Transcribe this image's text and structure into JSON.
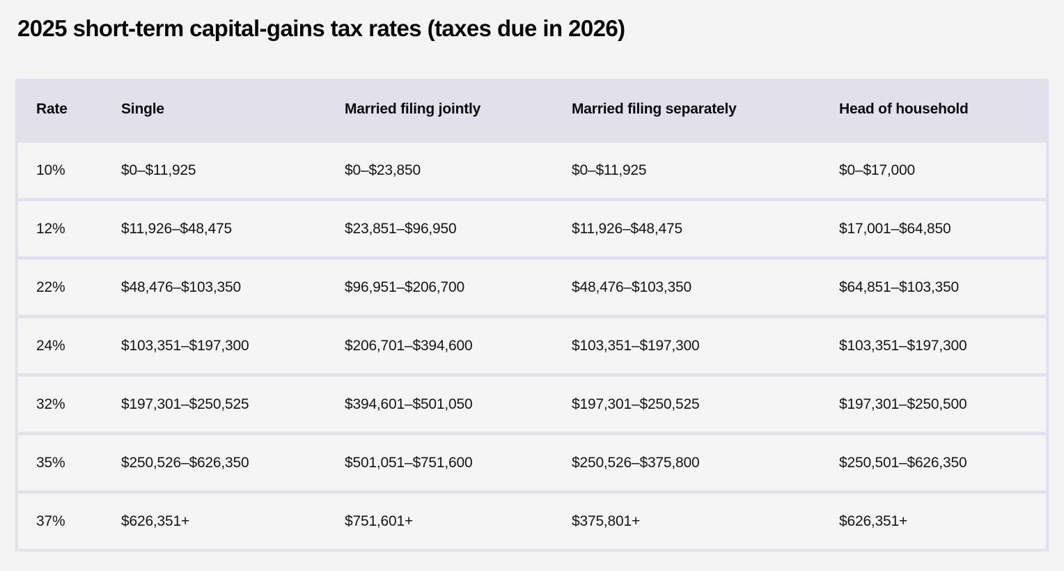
{
  "page": {
    "background_color": "#f4f4f4"
  },
  "colors": {
    "header_bg": "#e1e0eb",
    "row_bg": "#f6f5f6",
    "grid_lines": "#e2e1ed",
    "text": "#0e0e10"
  },
  "chart_data": {
    "type": "table",
    "title": "2025 short-term capital-gains tax rates (taxes due in 2026)",
    "columns": [
      "Rate",
      "Single",
      "Married filing jointly",
      "Married filing separately",
      "Head of household"
    ],
    "rows": [
      [
        "10%",
        "$0–$11,925",
        "$0–$23,850",
        "$0–$11,925",
        "$0–$17,000"
      ],
      [
        "12%",
        "$11,926–$48,475",
        "$23,851–$96,950",
        "$11,926–$48,475",
        "$17,001–$64,850"
      ],
      [
        "22%",
        "$48,476–$103,350",
        "$96,951–$206,700",
        "$48,476–$103,350",
        "$64,851–$103,350"
      ],
      [
        "24%",
        "$103,351–$197,300",
        "$206,701–$394,600",
        "$103,351–$197,300",
        "$103,351–$197,300"
      ],
      [
        "32%",
        "$197,301–$250,525",
        "$394,601–$501,050",
        "$197,301–$250,525",
        "$197,301–$250,500"
      ],
      [
        "35%",
        "$250,526–$626,350",
        "$501,051–$751,600",
        "$250,526–$375,800",
        "$250,501–$626,350"
      ],
      [
        "37%",
        "$626,351+",
        "$751,601+",
        "$375,801+",
        "$626,351+"
      ]
    ]
  }
}
